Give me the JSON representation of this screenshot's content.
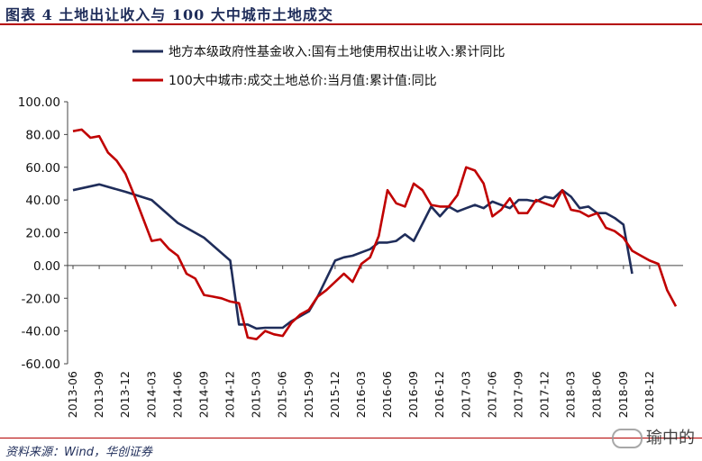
{
  "header": {
    "title": "图表 4   土地出让收入与 100 大中城市土地成交"
  },
  "footer": {
    "source": "资料来源：Wind，华创证券",
    "watermark": "瑜中的"
  },
  "chart_data": {
    "type": "line",
    "title": "图表 4   土地出让收入与 100 大中城市土地成交",
    "ylim": [
      -60,
      100
    ],
    "yticks": [
      "100.00",
      "80.00",
      "60.00",
      "40.00",
      "20.00",
      "0.00",
      "-20.00",
      "-40.00",
      "-60.00"
    ],
    "xticks": [
      "2013-06",
      "2013-09",
      "2013-12",
      "2014-03",
      "2014-06",
      "2014-09",
      "2014-12",
      "2015-03",
      "2015-06",
      "2015-09",
      "2015-12",
      "2016-03",
      "2016-06",
      "2016-09",
      "2016-12",
      "2017-03",
      "2017-06",
      "2017-09",
      "2017-12",
      "2018-03",
      "2018-06",
      "2018-09",
      "2018-12"
    ],
    "legend_position": "top",
    "series": [
      {
        "name": "地方本级政府性基金收入:国有土地使用权出让收入:累计同比",
        "color": "#1f2d5a",
        "values": [
          46,
          null,
          null,
          49.5,
          null,
          null,
          45,
          null,
          null,
          40,
          null,
          null,
          26,
          null,
          null,
          17,
          null,
          null,
          3,
          -36,
          -36,
          -38.5,
          -38,
          -38,
          -38,
          -34,
          -31,
          -28,
          -19,
          -8,
          3,
          5,
          6,
          8,
          10,
          14,
          14,
          15,
          19,
          15,
          null,
          36,
          30,
          36,
          33,
          35,
          37,
          35,
          39,
          37,
          35,
          40,
          40,
          39,
          42,
          41,
          46,
          42,
          35,
          36,
          32,
          32,
          29,
          25,
          -5
        ]
      },
      {
        "name": "100大中城市:成交土地总价:当月值:累计值:同比",
        "color": "#c00000",
        "values": [
          82,
          83,
          78,
          79,
          69,
          64,
          56,
          43,
          29,
          15,
          16,
          10,
          6,
          -5,
          -8,
          -18,
          -19,
          -20,
          -22,
          -23,
          -44,
          -45,
          -40,
          -42,
          -43,
          -35,
          -30,
          -27,
          -19,
          -15,
          -10,
          -5,
          -10,
          1,
          5,
          18,
          46,
          38,
          36,
          50,
          46,
          37,
          36,
          36,
          43,
          60,
          58,
          50,
          30,
          34,
          41,
          32,
          32,
          40,
          38,
          36,
          46,
          34,
          33,
          30,
          32,
          23,
          21,
          17,
          9,
          6,
          3,
          1,
          -15,
          -25
        ]
      }
    ]
  }
}
